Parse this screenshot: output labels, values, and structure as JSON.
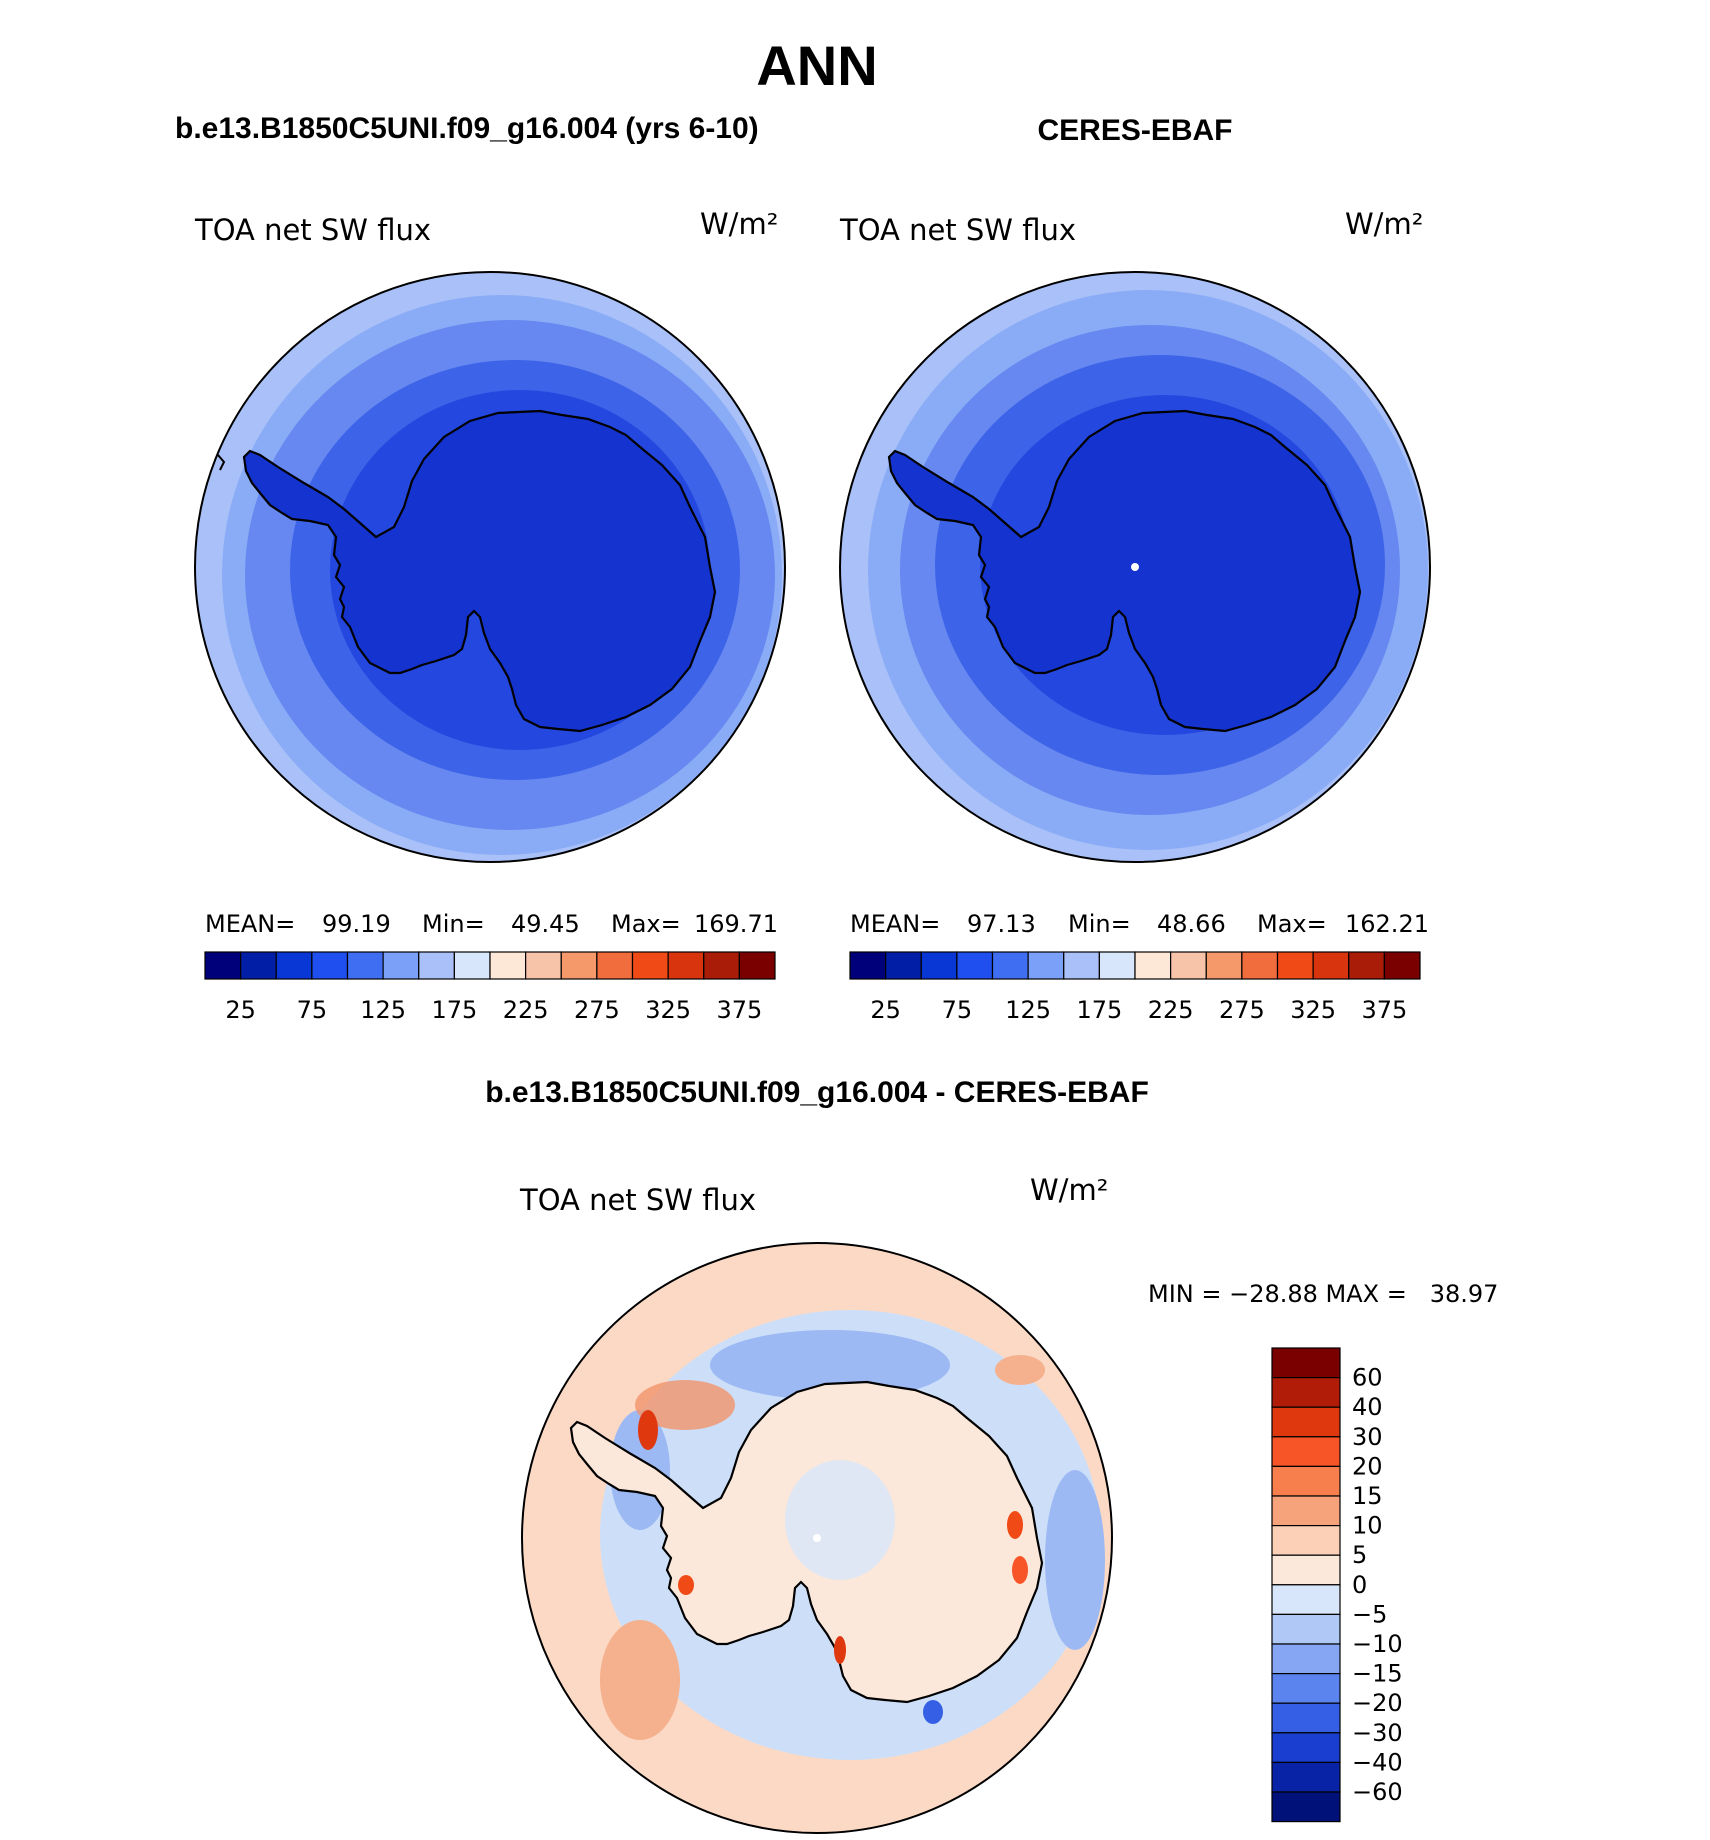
{
  "page_title": "ANN",
  "panels": [
    {
      "title": "b.e13.B1850C5UNI.f09_g16.004 (yrs 6-10)",
      "variable": "TOA net SW flux",
      "units": "W/m²",
      "stats": {
        "mean_label": "MEAN=",
        "mean": "99.19",
        "min_label": "Min=",
        "min": "49.45",
        "max_label": "Max=",
        "max": "169.71"
      }
    },
    {
      "title": "CERES-EBAF",
      "variable": "TOA net SW flux",
      "units": "W/m²",
      "stats": {
        "mean_label": "MEAN=",
        "mean": "97.13",
        "min_label": "Min=",
        "min": "48.66",
        "max_label": "Max=",
        "max": "162.21"
      }
    }
  ],
  "abs_colorbar": {
    "labels": [
      "25",
      "75",
      "125",
      "175",
      "225",
      "275",
      "325",
      "375"
    ],
    "colors": [
      "#00007a",
      "#001fa6",
      "#0837d6",
      "#1f4fee",
      "#3f6ef2",
      "#7ba0f7",
      "#a9c1f8",
      "#d8e6fb",
      "#fde7d6",
      "#f8c4a9",
      "#f5996b",
      "#f26d3e",
      "#f04a16",
      "#d8340e",
      "#a81c08",
      "#7a0000"
    ]
  },
  "diff_panel": {
    "title": "b.e13.B1850C5UNI.f09_g16.004 - CERES-EBAF",
    "variable": "TOA net SW flux",
    "units": "W/m²",
    "stats": "MIN = −28.88 MAX =   38.97"
  },
  "diff_colorbar": {
    "labels": [
      "60",
      "40",
      "30",
      "20",
      "15",
      "10",
      "5",
      "0",
      "−5",
      "−10",
      "−15",
      "−20",
      "−30",
      "−40",
      "−60"
    ],
    "colors": [
      "#7a0000",
      "#b01c08",
      "#e0380e",
      "#f75527",
      "#f77f4e",
      "#f6a27b",
      "#fbd0b6",
      "#fce8da",
      "#d7e6fa",
      "#afc8f6",
      "#86a6f4",
      "#5c84ef",
      "#3560e6",
      "#1a3fd0",
      "#0823a6",
      "#00117a"
    ]
  },
  "map_colors": {
    "abs_ring_outer": "#8aacf6",
    "abs_ring_mid": "#6688f0",
    "abs_ring_inner": "#3d63e8",
    "abs_ring_core": "#2448df",
    "antarctica": "#1433cf",
    "coast": "#000000",
    "diff_background": "#fbd9c5",
    "diff_light_blue": "#cddff8",
    "diff_blue": "#9cb9f4",
    "diff_red": "#f2946a",
    "diff_land": "#fce8da"
  }
}
